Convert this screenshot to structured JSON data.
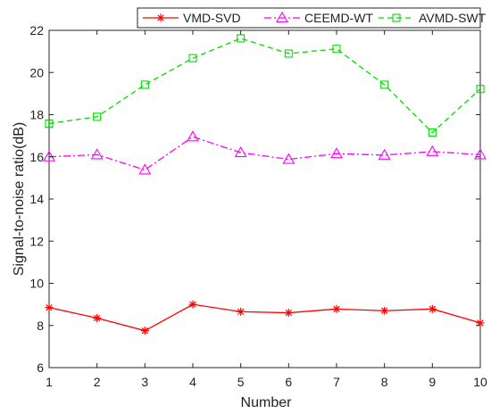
{
  "chart_data": {
    "type": "line",
    "xlabel": "Number",
    "ylabel": "Signal-to-noise ratio(dB)",
    "x": [
      1,
      2,
      3,
      4,
      5,
      6,
      7,
      8,
      9,
      10
    ],
    "xlim": [
      1,
      10
    ],
    "ylim": [
      6,
      22
    ],
    "xticks": [
      "1",
      "2",
      "3",
      "4",
      "5",
      "6",
      "7",
      "8",
      "9",
      "10"
    ],
    "yticks": [
      "6",
      "8",
      "10",
      "12",
      "14",
      "16",
      "18",
      "20",
      "22"
    ],
    "grid": false,
    "legend_position": "top, horizontal",
    "series": [
      {
        "name": "VMD-SVD",
        "color": "#ff0000",
        "line_style": "solid",
        "marker": "star",
        "values": [
          8.85,
          8.35,
          7.75,
          9.0,
          8.65,
          8.6,
          8.78,
          8.7,
          8.78,
          8.12
        ]
      },
      {
        "name": "CEEMD-WT",
        "color": "#ff00ff",
        "line_style": "dash-dot",
        "marker": "triangle",
        "values": [
          16.0,
          16.1,
          15.38,
          16.95,
          16.2,
          15.88,
          16.15,
          16.08,
          16.25,
          16.1
        ]
      },
      {
        "name": "AVMD-SWT",
        "color": "#00dd00",
        "line_style": "dashed",
        "marker": "square",
        "values": [
          17.58,
          17.9,
          19.42,
          20.68,
          21.62,
          20.9,
          21.12,
          19.42,
          17.15,
          19.22
        ]
      }
    ]
  }
}
